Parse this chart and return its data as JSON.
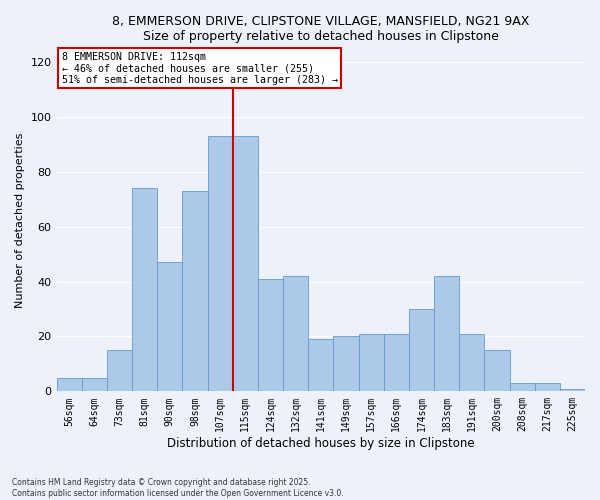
{
  "title": "8, EMMERSON DRIVE, CLIPSTONE VILLAGE, MANSFIELD, NG21 9AX",
  "subtitle": "Size of property relative to detached houses in Clipstone",
  "xlabel": "Distribution of detached houses by size in Clipstone",
  "ylabel": "Number of detached properties",
  "categories": [
    "56sqm",
    "64sqm",
    "73sqm",
    "81sqm",
    "90sqm",
    "98sqm",
    "107sqm",
    "115sqm",
    "124sqm",
    "132sqm",
    "141sqm",
    "149sqm",
    "157sqm",
    "166sqm",
    "174sqm",
    "183sqm",
    "191sqm",
    "200sqm",
    "208sqm",
    "217sqm",
    "225sqm"
  ],
  "values": [
    5,
    5,
    15,
    74,
    47,
    73,
    93,
    93,
    41,
    42,
    19,
    20,
    21,
    21,
    30,
    42,
    21,
    15,
    3,
    3,
    1
  ],
  "bar_color": "#adc9e9",
  "bar_edge_color": "#6699cc",
  "vline_color": "#cc0000",
  "annotation_text": "8 EMMERSON DRIVE: 112sqm\n← 46% of detached houses are smaller (255)\n51% of semi-detached houses are larger (283) →",
  "annotation_box_color": "#ffffff",
  "annotation_box_edge_color": "#cc0000",
  "ylim": [
    0,
    125
  ],
  "footnote_line1": "Contains HM Land Registry data © Crown copyright and database right 2025.",
  "footnote_line2": "Contains public sector information licensed under the Open Government Licence v3.0.",
  "background_color": "#edf2fa",
  "grid_color": "#ffffff"
}
